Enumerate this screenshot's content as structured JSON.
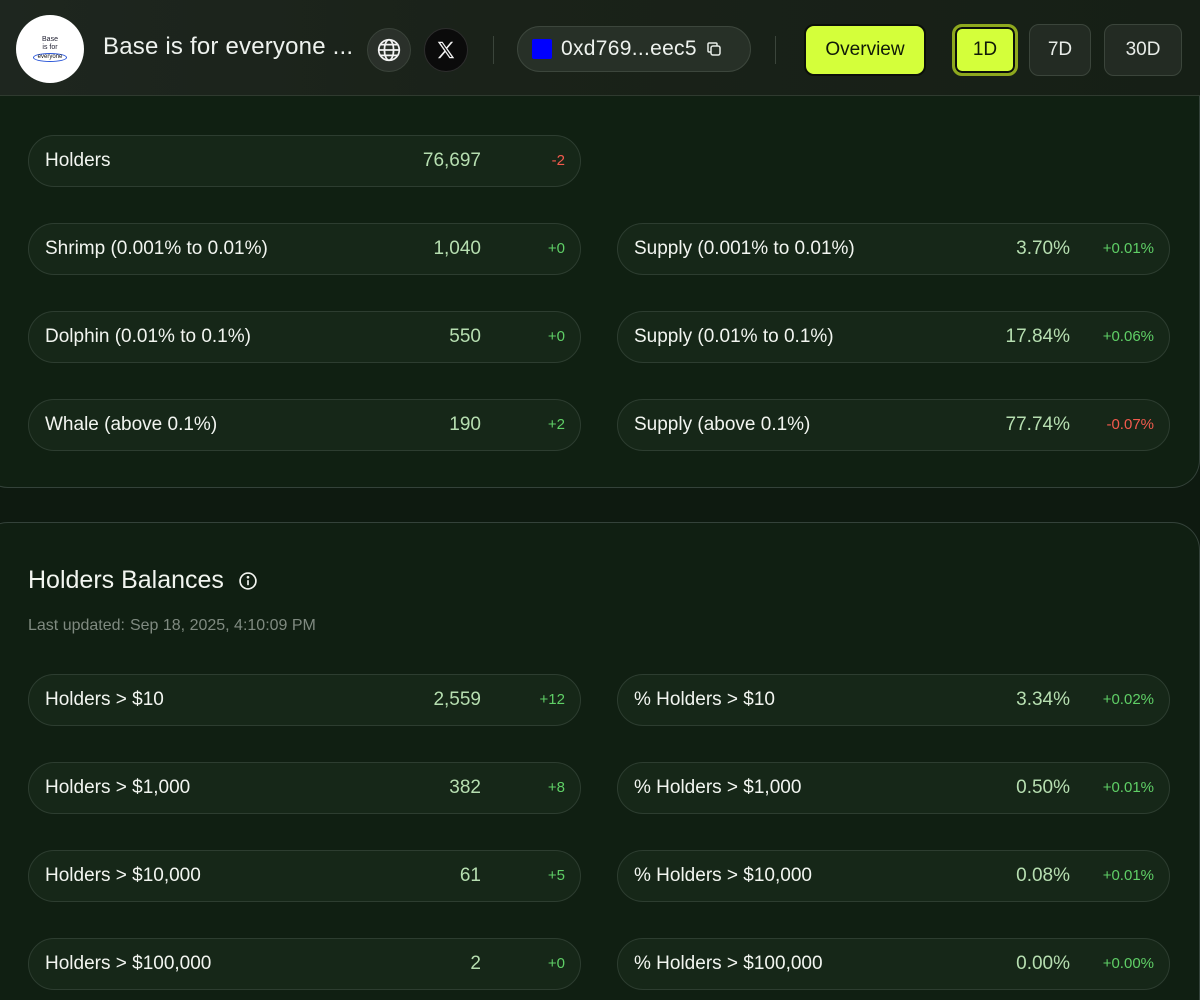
{
  "header": {
    "logo_lines": [
      "Base",
      "is for",
      "everyone"
    ],
    "token_title": "Base is for everyone ...",
    "website_icon": "globe-icon",
    "social_icon": "x-logo-icon",
    "address": "0xd769...eec5",
    "address_swatch_color": "#0000ff",
    "copy_icon": "copy-icon",
    "overview_label": "Overview",
    "ranges": [
      "1D",
      "7D",
      "30D"
    ],
    "active_range": "1D",
    "accent_color": "#d4ff3a"
  },
  "holders": {
    "total": {
      "label": "Holders",
      "value": "76,697",
      "change": "-2"
    },
    "tiers": [
      {
        "label": "Shrimp (0.001% to 0.01%)",
        "value": "1,040",
        "change": "+0"
      },
      {
        "label": "Dolphin (0.01% to 0.1%)",
        "value": "550",
        "change": "+0"
      },
      {
        "label": "Whale (above 0.1%)",
        "value": "190",
        "change": "+2"
      }
    ],
    "supply": [
      {
        "label": "Supply (0.001% to 0.01%)",
        "value": "3.70%",
        "change": "+0.01%"
      },
      {
        "label": "Supply (0.01% to 0.1%)",
        "value": "17.84%",
        "change": "+0.06%"
      },
      {
        "label": "Supply (above 0.1%)",
        "value": "77.74%",
        "change": "-0.07%"
      }
    ]
  },
  "balances": {
    "title": "Holders Balances",
    "info_icon": "info-icon",
    "updated_label": "Last updated:",
    "updated_value": "Sep 18, 2025, 4:10:09 PM",
    "counts": [
      {
        "label": "Holders > $10",
        "value": "2,559",
        "change": "+12"
      },
      {
        "label": "Holders > $1,000",
        "value": "382",
        "change": "+8"
      },
      {
        "label": "Holders > $10,000",
        "value": "61",
        "change": "+5"
      },
      {
        "label": "Holders > $100,000",
        "value": "2",
        "change": "+0"
      }
    ],
    "percents": [
      {
        "label": "% Holders > $10",
        "value": "3.34%",
        "change": "+0.02%"
      },
      {
        "label": "% Holders > $1,000",
        "value": "0.50%",
        "change": "+0.01%"
      },
      {
        "label": "% Holders > $10,000",
        "value": "0.08%",
        "change": "+0.01%"
      },
      {
        "label": "% Holders > $100,000",
        "value": "0.00%",
        "change": "+0.00%"
      }
    ]
  },
  "colors": {
    "positive": "#5fcf66",
    "negative": "#f25a4d",
    "value_green": "#b6deb0"
  }
}
